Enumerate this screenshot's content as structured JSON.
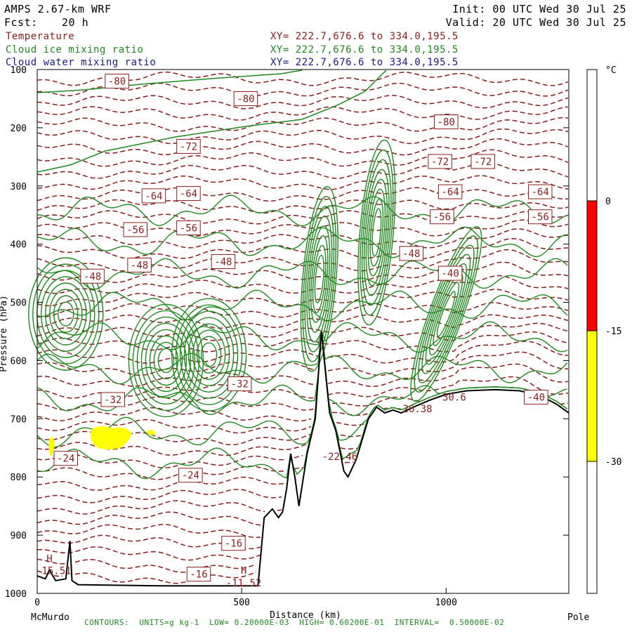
{
  "header": {
    "model": "AMPS 2.67-km WRF",
    "init": "Init: 00 UTC Wed 30 Jul 25",
    "fcst_label": "Fcst:",
    "fcst_value": "20 h",
    "valid": "Valid: 20 UTC Wed 30 Jul 25"
  },
  "fields": [
    {
      "name": "Temperature",
      "xy": "XY= 222.7,676.6 to 334.0,195.5",
      "color": "#8a1c1c"
    },
    {
      "name": "Cloud ice mixing ratio",
      "xy": "XY= 222.7,676.6 to 334.0,195.5",
      "color": "#1e8a1e"
    },
    {
      "name": "Cloud water mixing ratio",
      "xy": "XY= 222.7,676.6 to 334.0,195.5",
      "color": "#1a1a8a"
    }
  ],
  "footer": "CONTOURS:  UNITS=g kg-1  LOW= 0.20000E-03  HIGH= 0.60200E-01  INTERVAL=  0.50000E-02",
  "chart_data": {
    "type": "cross-section",
    "ylabel": "Pressure (hPa)",
    "xlabel": "Distance (km)",
    "x_left_label": "McMurdo",
    "x_right_label": "Pole",
    "xlim": [
      0,
      1300
    ],
    "ylim": [
      1000,
      100
    ],
    "y_ticks": [
      100,
      200,
      300,
      400,
      500,
      600,
      700,
      800,
      900,
      1000
    ],
    "x_ticks": [
      0,
      500,
      1000
    ],
    "colorbar": {
      "unit": "°C",
      "ticks": [
        0,
        -15,
        -30
      ],
      "bands": [
        {
          "from": 0,
          "to": 100,
          "color": "#ffffff"
        },
        {
          "from": -15,
          "to": 0,
          "color": "#ff0000"
        },
        {
          "from": -30,
          "to": -15,
          "color": "#ffff00"
        },
        {
          "from": -100,
          "to": -30,
          "color": "#ffffff"
        }
      ]
    },
    "temperature_labels": [
      {
        "text": "-80",
        "x": 195,
        "p": 120
      },
      {
        "text": "-80",
        "x": 510,
        "p": 150
      },
      {
        "text": "-80",
        "x": 1000,
        "p": 190
      },
      {
        "text": "-72",
        "x": 370,
        "p": 232
      },
      {
        "text": "-72",
        "x": 985,
        "p": 258
      },
      {
        "text": "-72",
        "x": 1090,
        "p": 258
      },
      {
        "text": "-64",
        "x": 285,
        "p": 317
      },
      {
        "text": "-64",
        "x": 370,
        "p": 313
      },
      {
        "text": "-64",
        "x": 1010,
        "p": 310
      },
      {
        "text": "-64",
        "x": 1230,
        "p": 310
      },
      {
        "text": "-56",
        "x": 240,
        "p": 375
      },
      {
        "text": "-56",
        "x": 370,
        "p": 372
      },
      {
        "text": "-56",
        "x": 990,
        "p": 353
      },
      {
        "text": "-56",
        "x": 1230,
        "p": 353
      },
      {
        "text": "-48",
        "x": 135,
        "p": 455
      },
      {
        "text": "-48",
        "x": 250,
        "p": 436
      },
      {
        "text": "-48",
        "x": 455,
        "p": 430
      },
      {
        "text": "-48",
        "x": 915,
        "p": 416
      },
      {
        "text": "-40",
        "x": 1010,
        "p": 450
      },
      {
        "text": "-40",
        "x": 1220,
        "p": 663
      },
      {
        "text": "-32",
        "x": 495,
        "p": 640
      },
      {
        "text": "-32",
        "x": 185,
        "p": 667
      },
      {
        "text": "-24",
        "x": 70,
        "p": 768
      },
      {
        "text": "-24",
        "x": 375,
        "p": 797
      },
      {
        "text": "-16",
        "x": 480,
        "p": 914
      },
      {
        "text": "-16",
        "x": 395,
        "p": 967
      }
    ],
    "point_labels": [
      {
        "text": "H",
        "x": 30,
        "p": 940
      },
      {
        "text": "-15.51",
        "x": 40,
        "p": 961
      },
      {
        "text": "H",
        "x": 505,
        "p": 960
      },
      {
        "text": "-11.52",
        "x": 505,
        "p": 982
      },
      {
        "text": "-22.46",
        "x": 740,
        "p": 765
      },
      {
        "text": "26.38",
        "x": 930,
        "p": 683
      },
      {
        "text": "30.6",
        "x": 1020,
        "p": 663
      }
    ],
    "ice_cores": [
      {
        "x": 70,
        "p": 520
      },
      {
        "x": 315,
        "p": 600
      },
      {
        "x": 420,
        "p": 590
      },
      {
        "x": 690,
        "p": 460
      },
      {
        "x": 830,
        "p": 380
      },
      {
        "x": 1000,
        "p": 520
      }
    ],
    "terrain_surface": [
      [
        0,
        970
      ],
      [
        20,
        975
      ],
      [
        30,
        960
      ],
      [
        45,
        978
      ],
      [
        70,
        975
      ],
      [
        80,
        910
      ],
      [
        85,
        978
      ],
      [
        100,
        985
      ],
      [
        300,
        987
      ],
      [
        540,
        987
      ],
      [
        555,
        870
      ],
      [
        575,
        855
      ],
      [
        590,
        870
      ],
      [
        600,
        860
      ],
      [
        610,
        820
      ],
      [
        620,
        760
      ],
      [
        630,
        800
      ],
      [
        640,
        850
      ],
      [
        660,
        760
      ],
      [
        680,
        700
      ],
      [
        695,
        550
      ],
      [
        705,
        620
      ],
      [
        715,
        690
      ],
      [
        730,
        720
      ],
      [
        750,
        790
      ],
      [
        760,
        800
      ],
      [
        780,
        770
      ],
      [
        810,
        700
      ],
      [
        830,
        680
      ],
      [
        850,
        690
      ],
      [
        870,
        685
      ],
      [
        890,
        690
      ],
      [
        920,
        680
      ],
      [
        960,
        668
      ],
      [
        1000,
        658
      ],
      [
        1050,
        652
      ],
      [
        1120,
        650
      ],
      [
        1180,
        652
      ],
      [
        1230,
        660
      ],
      [
        1270,
        675
      ],
      [
        1300,
        690
      ]
    ]
  }
}
